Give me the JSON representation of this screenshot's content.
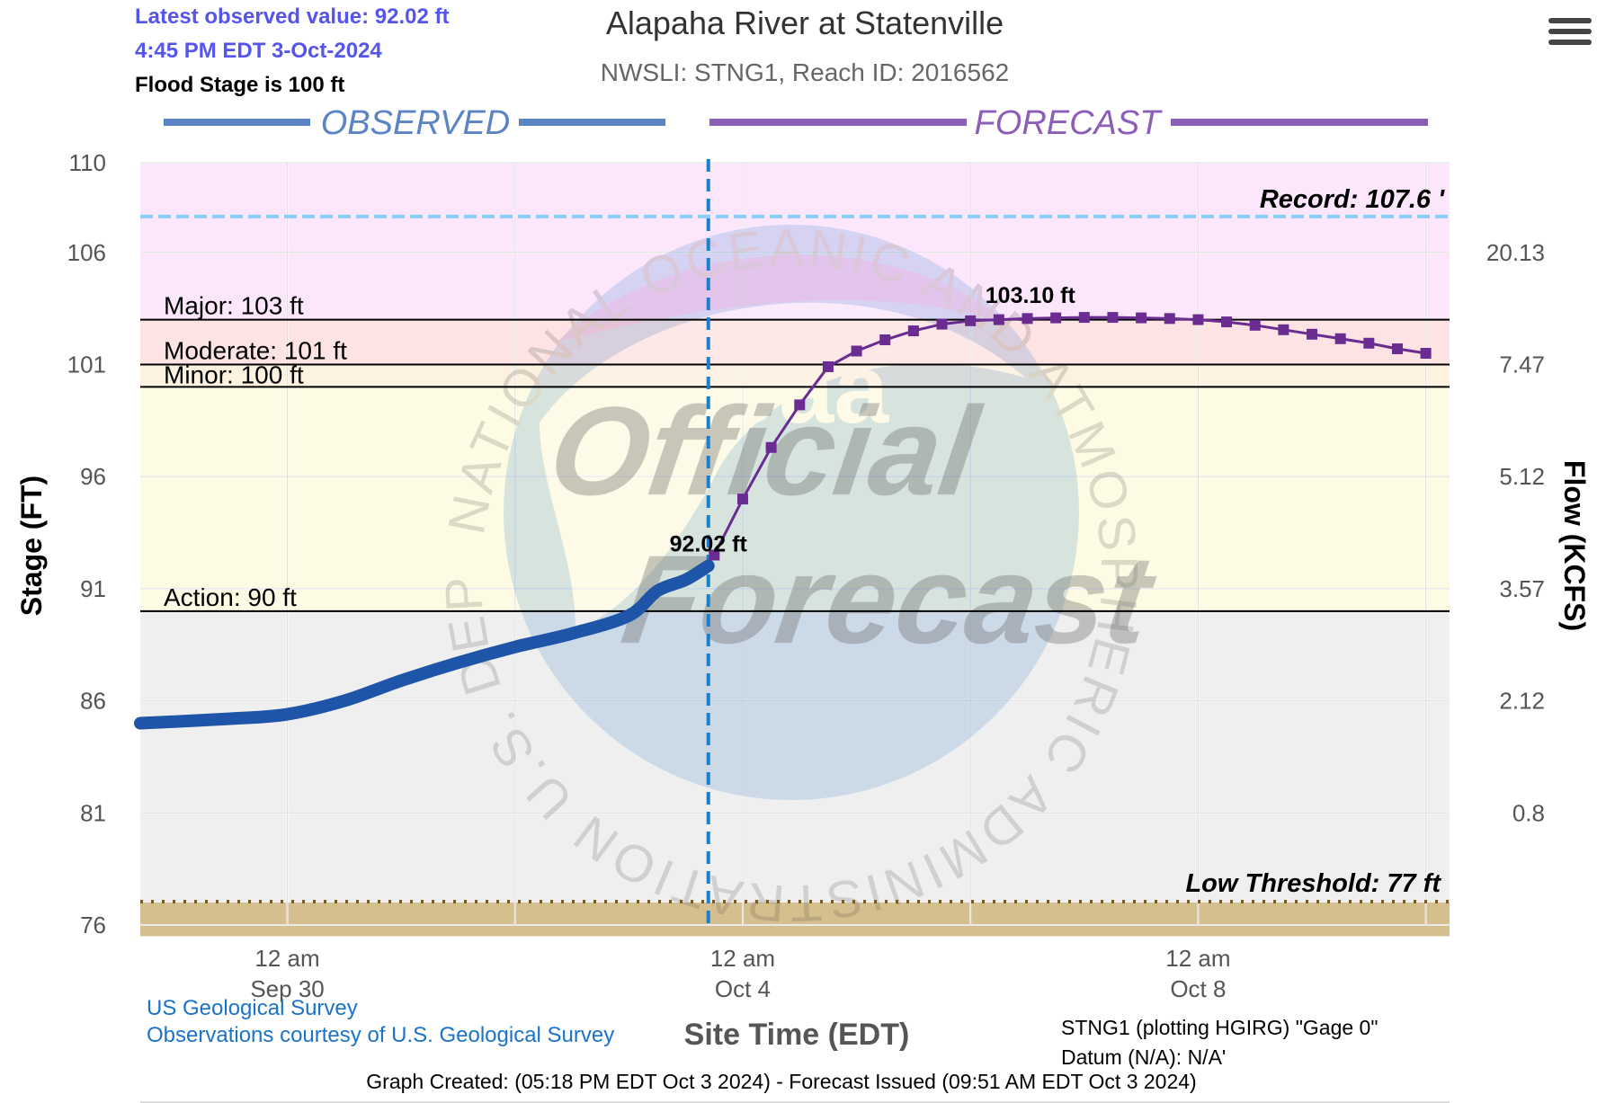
{
  "header": {
    "latest_observed": "Latest observed value: 92.02 ft",
    "latest_time": "4:45 PM EDT 3-Oct-2024",
    "flood_stage_note": "Flood Stage is 100 ft",
    "title": "Alapaha River at Statenville",
    "subtitle": "NWSLI: STNG1, Reach ID: 2016562"
  },
  "sections": {
    "observed_label": "OBSERVED",
    "forecast_label": "FORECAST"
  },
  "watermark": {
    "ring_text": "NATIONAL OCEANIC AND ATMOSPHERIC ADMINISTRATION U.S. DEPARTMENT OF COMMERCE",
    "logo_text": "noaa",
    "official": "Official",
    "forecast": "Forecast"
  },
  "footer": {
    "source1": "US Geological Survey",
    "source2": "Observations courtesy of U.S. Geological Survey",
    "gage_line1": "STNG1 (plotting HGIRG) \"Gage 0\"",
    "gage_line2": "Datum (N/A): N/A'",
    "created": "Graph Created: (05:18 PM EDT Oct 3 2024) - Forecast Issued (09:51 AM EDT Oct 3 2024)"
  },
  "colors": {
    "observed": "#1f55a8",
    "forecast": "#6a2c91",
    "observed_header": "#5b84c4",
    "forecast_header": "#8b5fb8",
    "record_line": "#87cefa",
    "band_major": "#fbe6fb",
    "band_moderate": "#fde3e3",
    "band_minor": "#fdf1e0",
    "band_action": "#fdfbe3",
    "band_normal": "#efefef",
    "band_low": "#d6bf8f",
    "info_text": "#5555ee",
    "link_text": "#1a73c9"
  },
  "chart_data": {
    "type": "line",
    "title": "Alapaha River at Statenville",
    "xlabel": "Site Time (EDT)",
    "ylabel": "Stage (FT)",
    "ylabel_right": "Flow (KCFS)",
    "ylim": [
      76,
      110
    ],
    "xlim": [
      "2024-09-28T17:00",
      "2024-10-10T05:00"
    ],
    "y_ticks": [
      "110",
      "106",
      "101",
      "96",
      "91",
      "86",
      "81",
      "76"
    ],
    "y_tick_values": [
      110,
      106,
      101,
      96,
      91,
      86,
      81,
      76
    ],
    "flow_ticks": [
      "20.13",
      "7.47",
      "5.12",
      "3.57",
      "2.12",
      "0.8"
    ],
    "flow_tick_stages": [
      106,
      101,
      96,
      91,
      86,
      81
    ],
    "x_ticks": [
      {
        "at": "2024-09-30T00:00",
        "line1": "12 am",
        "line2": "Sep 30"
      },
      {
        "at": "2024-10-04T00:00",
        "line1": "12 am",
        "line2": "Oct 4"
      },
      {
        "at": "2024-10-08T00:00",
        "line1": "12 am",
        "line2": "Oct 8"
      }
    ],
    "x_gridlines": [
      "2024-09-30T00:00",
      "2024-10-02T00:00",
      "2024-10-04T00:00",
      "2024-10-06T00:00",
      "2024-10-08T00:00",
      "2024-10-10T00:00"
    ],
    "now": "2024-10-03T16:45",
    "thresholds": [
      {
        "name": "major",
        "label": "Major: 103 ft",
        "value": 103
      },
      {
        "name": "moderate",
        "label": "Moderate: 101 ft",
        "value": 101
      },
      {
        "name": "minor",
        "label": "Minor: 100 ft",
        "value": 100
      },
      {
        "name": "action",
        "label": "Action: 90 ft",
        "value": 90
      }
    ],
    "record": {
      "label": "Record: 107.6 '",
      "value": 107.6
    },
    "low_threshold": {
      "label": "Low Threshold: 77 ft",
      "value": 77
    },
    "annotations": {
      "observed_last": "92.02 ft",
      "forecast_peak": "103.10 ft"
    },
    "series": [
      {
        "name": "observed",
        "x": [
          "2024-09-28T17:00",
          "2024-09-29T12:00",
          "2024-09-30T00:00",
          "2024-09-30T12:00",
          "2024-10-01T00:00",
          "2024-10-01T12:00",
          "2024-10-02T00:00",
          "2024-10-02T12:00",
          "2024-10-03T00:00",
          "2024-10-03T06:00",
          "2024-10-03T12:00",
          "2024-10-03T16:45"
        ],
        "y": [
          85.0,
          85.2,
          85.4,
          86.0,
          86.9,
          87.7,
          88.4,
          89.0,
          89.8,
          90.9,
          91.4,
          92.02
        ]
      },
      {
        "name": "forecast",
        "x": [
          "2024-10-03T18:00",
          "2024-10-04T00:00",
          "2024-10-04T06:00",
          "2024-10-04T12:00",
          "2024-10-04T18:00",
          "2024-10-05T00:00",
          "2024-10-05T06:00",
          "2024-10-05T12:00",
          "2024-10-05T18:00",
          "2024-10-06T00:00",
          "2024-10-06T06:00",
          "2024-10-06T12:00",
          "2024-10-06T18:00",
          "2024-10-07T00:00",
          "2024-10-07T06:00",
          "2024-10-07T12:00",
          "2024-10-07T18:00",
          "2024-10-08T00:00",
          "2024-10-08T06:00",
          "2024-10-08T12:00",
          "2024-10-08T18:00",
          "2024-10-09T00:00",
          "2024-10-09T06:00",
          "2024-10-09T12:00",
          "2024-10-09T18:00",
          "2024-10-10T00:00"
        ],
        "y": [
          92.5,
          95.0,
          97.3,
          99.2,
          100.9,
          101.6,
          102.1,
          102.5,
          102.8,
          102.95,
          103.0,
          103.05,
          103.08,
          103.1,
          103.1,
          103.08,
          103.05,
          103.0,
          102.9,
          102.75,
          102.55,
          102.35,
          102.15,
          101.95,
          101.7,
          101.5
        ]
      }
    ]
  }
}
